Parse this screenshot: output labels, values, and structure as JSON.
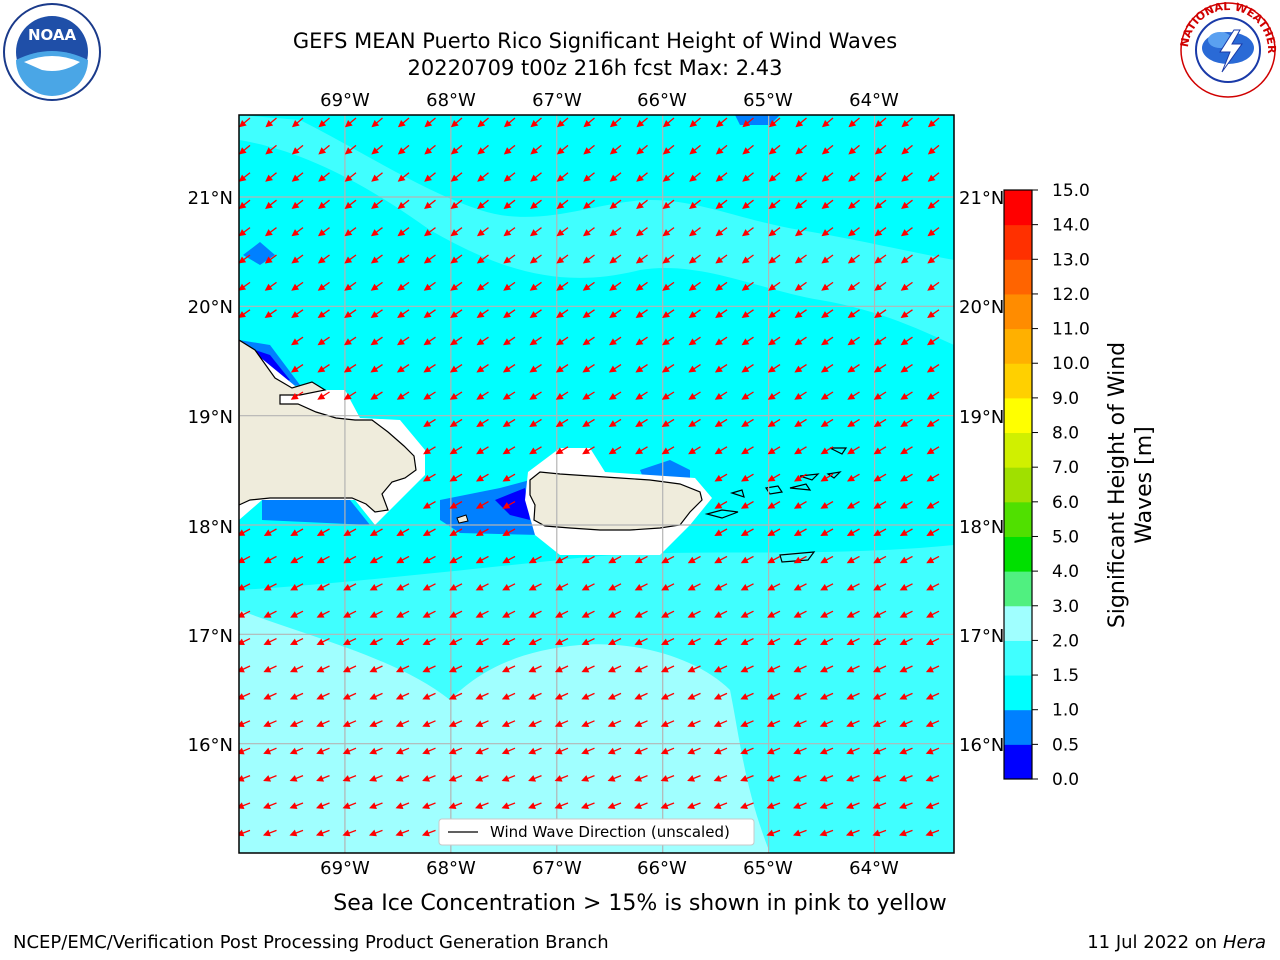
{
  "header": {
    "title_line1": "GEFS MEAN Puerto Rico Significant Height of Wind Waves",
    "title_line2": "20220709 t00z 216h fcst   Max: 2.43"
  },
  "logos": {
    "left": "noaa-logo",
    "right": "nws-logo",
    "right_text": "NATIONAL WEATHER SERVICE"
  },
  "map": {
    "lon_ticks": [
      "69°W",
      "68°W",
      "67°W",
      "66°W",
      "65°W",
      "64°W"
    ],
    "lat_ticks": [
      "21°N",
      "20°N",
      "19°N",
      "18°N",
      "17°N",
      "16°N"
    ],
    "lon_range": [
      -70.0,
      -63.25
    ],
    "lat_range": [
      15.0,
      21.75
    ],
    "max_value": 2.43,
    "legend_label": "Wind Wave Direction (unscaled)",
    "arrow_color": "#ff0000",
    "land_color": "#efecdc",
    "grid": true
  },
  "colorbar": {
    "label": "Significant Height of Wind Waves [m]",
    "ticks": [
      "0.0",
      "0.5",
      "1.0",
      "1.5",
      "2.0",
      "3.0",
      "4.0",
      "5.0",
      "6.0",
      "7.0",
      "8.0",
      "9.0",
      "10.0",
      "11.0",
      "12.0",
      "13.0",
      "14.0",
      "15.0"
    ],
    "colors": [
      "#0000ff",
      "#0080ff",
      "#00ffff",
      "#40ffff",
      "#a0ffff",
      "#50f080",
      "#00e000",
      "#50e000",
      "#a0e000",
      "#d0f000",
      "#ffff00",
      "#ffd000",
      "#ffb000",
      "#ff8c00",
      "#ff6400",
      "#ff3000",
      "#ff0000"
    ]
  },
  "footer": {
    "ice_note": "Sea Ice Concentration > 15% is shown in pink to yellow",
    "credit": "NCEP/EMC/Verification Post Processing Product Generation Branch",
    "date_prefix": "11 Jul 2022 on ",
    "machine": "Hera"
  }
}
